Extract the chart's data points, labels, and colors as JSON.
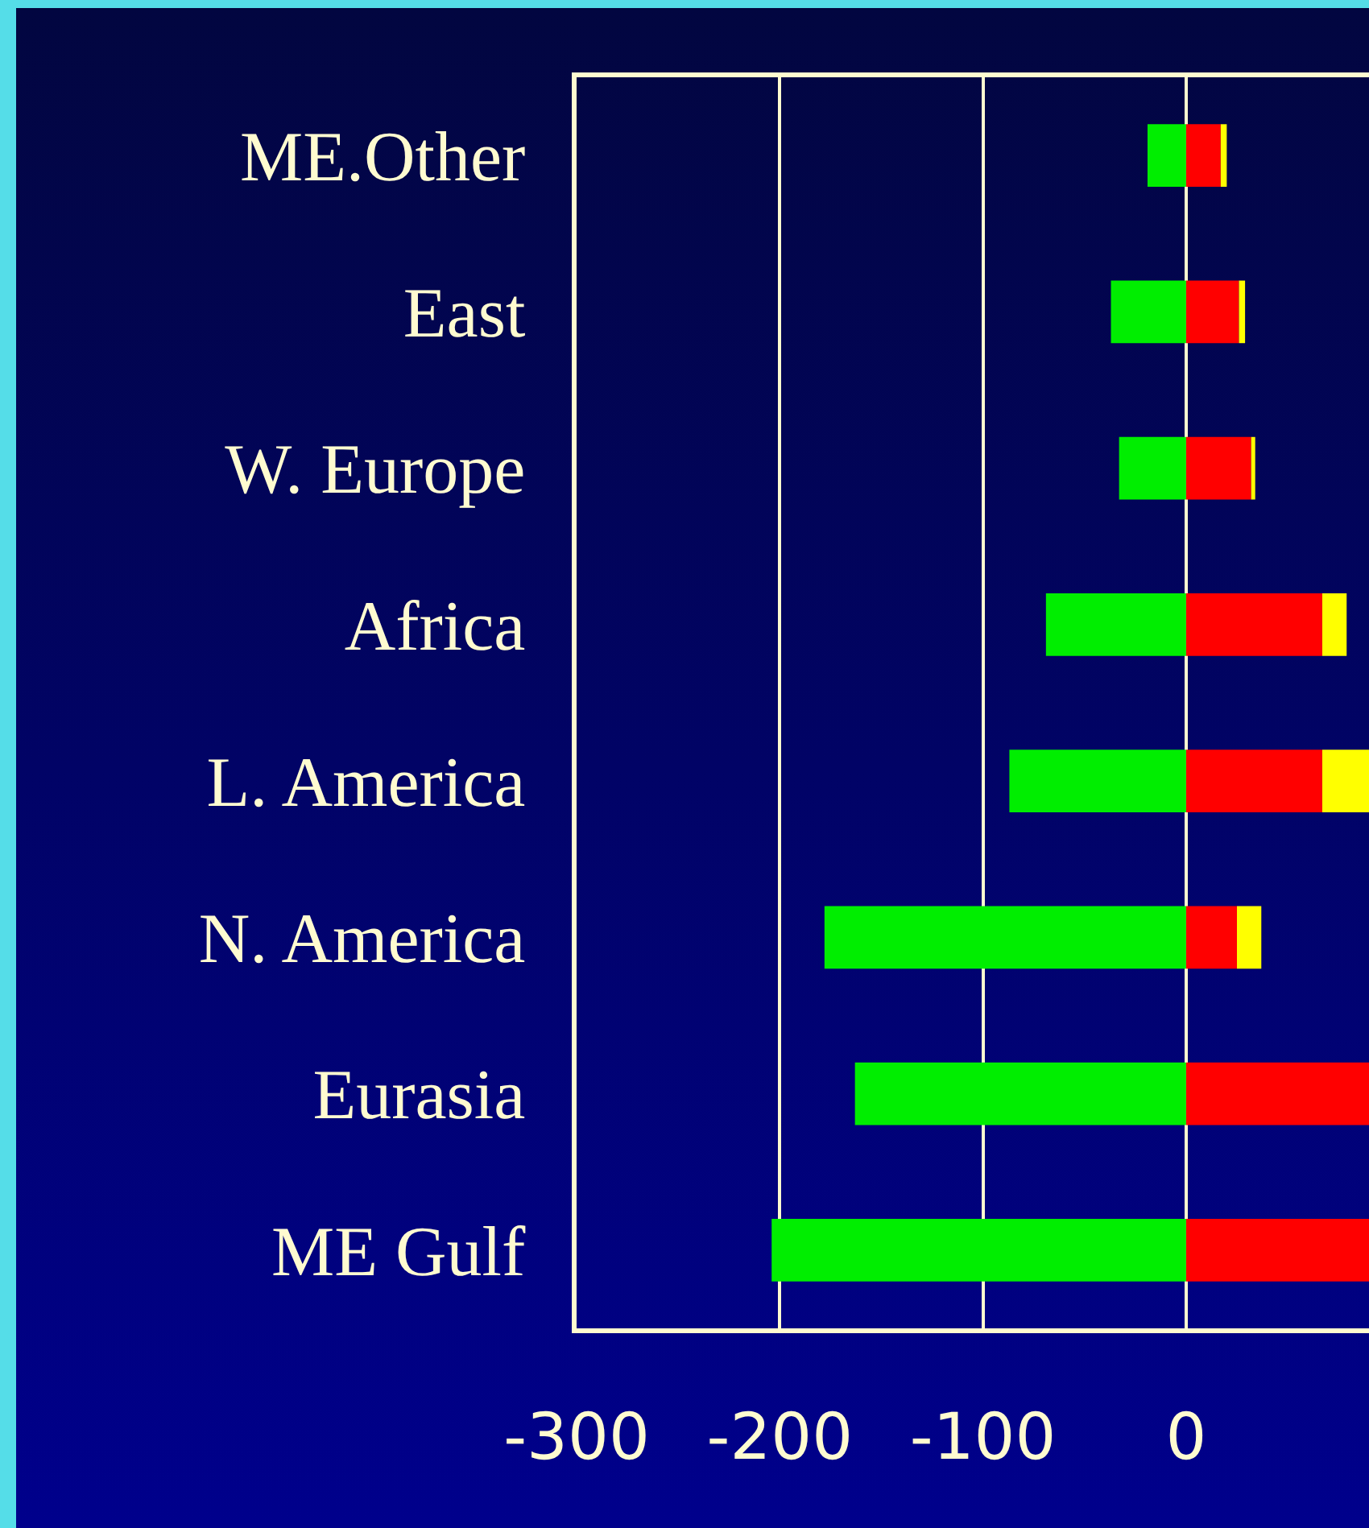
{
  "chart_data": {
    "type": "bar",
    "orientation": "horizontal",
    "stacked": true,
    "categories": [
      "ME.Other",
      "East",
      "W. Europe",
      "Africa",
      "L. America",
      "N. America",
      "Eurasia",
      "ME Gulf"
    ],
    "series": [
      {
        "color": "#00ee00",
        "values": [
          -19,
          -37,
          -33,
          -69,
          -87,
          -178,
          -163,
          -204
        ]
      },
      {
        "color": "#ff0000",
        "values": [
          17,
          26,
          32,
          67,
          67,
          25,
          90,
          90
        ]
      },
      {
        "color": "#ffff00",
        "values": [
          3,
          3,
          2,
          12,
          23,
          12,
          null,
          null
        ]
      }
    ],
    "xlim": [
      -300,
      90
    ],
    "xticks": [
      -300,
      -200,
      -100,
      0
    ],
    "grid": "x"
  }
}
